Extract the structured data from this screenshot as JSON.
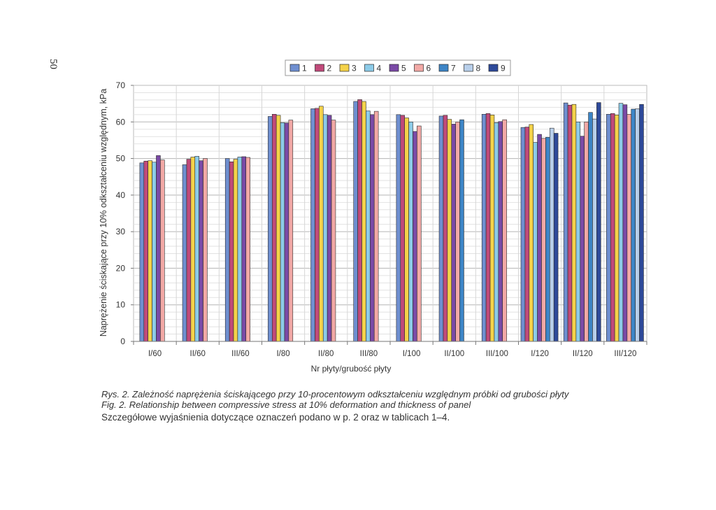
{
  "page_number": "50",
  "captions": {
    "figure_pl": "Rys. 2. Zależność naprężenia ściskającego przy 10-procentowym odkształceniu względnym próbki od grubości płyty",
    "figure_en": "Fig. 2. Relationship between compressive stress at 10% deformation and thickness of panel",
    "note": "Szczegółowe wyjaśnienia dotyczące oznaczeń podano w p. 2 oraz w tablicach 1–4."
  },
  "chart_data": {
    "type": "bar",
    "title": "",
    "xlabel": "Nr płyty/grubość płyty",
    "ylabel": "Naprężenie ściskające przy 10% odkształceniu względnym, kPa",
    "ylim": [
      0,
      70
    ],
    "yticks": [
      0,
      10,
      20,
      30,
      40,
      50,
      60,
      70
    ],
    "grid": true,
    "legend_position": "top",
    "categories": [
      "I/60",
      "II/60",
      "III/60",
      "I/80",
      "II/80",
      "III/80",
      "I/100",
      "II/100",
      "III/100",
      "I/120",
      "II/120",
      "III/120"
    ],
    "series": [
      {
        "name": "1",
        "color": "#6f8fd0",
        "values": [
          48.8,
          48.3,
          50.0,
          61.5,
          63.6,
          65.6,
          62.0,
          61.6,
          62.1,
          58.5,
          65.2,
          62.1
        ]
      },
      {
        "name": "2",
        "color": "#c04a7a",
        "values": [
          49.3,
          49.8,
          49.1,
          62.1,
          63.7,
          66.1,
          61.8,
          61.8,
          62.3,
          58.6,
          64.6,
          62.3
        ]
      },
      {
        "name": "3",
        "color": "#f4d24a",
        "values": [
          49.4,
          50.4,
          49.8,
          61.8,
          64.3,
          65.6,
          61.1,
          60.7,
          61.9,
          59.3,
          64.8,
          61.9
        ]
      },
      {
        "name": "4",
        "color": "#8ccbe8",
        "values": [
          49.0,
          50.6,
          50.4,
          59.8,
          62.0,
          63.0,
          60.0,
          null,
          59.8,
          54.4,
          60.0,
          65.1
        ]
      },
      {
        "name": "5",
        "color": "#7a4aa6",
        "values": [
          50.8,
          49.4,
          50.5,
          59.7,
          61.8,
          62.0,
          57.4,
          59.4,
          60.1,
          56.6,
          56.1,
          64.7
        ]
      },
      {
        "name": "6",
        "color": "#f2a9a6",
        "values": [
          49.6,
          50.0,
          50.3,
          60.5,
          60.5,
          62.9,
          58.9,
          60.0,
          60.6,
          55.5,
          60.0,
          62.1
        ]
      },
      {
        "name": "7",
        "color": "#3d85c6",
        "values": [
          null,
          null,
          null,
          null,
          null,
          null,
          null,
          60.6,
          null,
          55.8,
          62.6,
          63.5
        ]
      },
      {
        "name": "8",
        "color": "#b8cfea",
        "values": [
          null,
          null,
          null,
          null,
          null,
          null,
          null,
          null,
          null,
          58.3,
          60.8,
          63.6
        ]
      },
      {
        "name": "9",
        "color": "#2e4a9a",
        "values": [
          null,
          null,
          null,
          null,
          null,
          null,
          null,
          null,
          null,
          56.9,
          65.3,
          64.8
        ]
      }
    ]
  }
}
